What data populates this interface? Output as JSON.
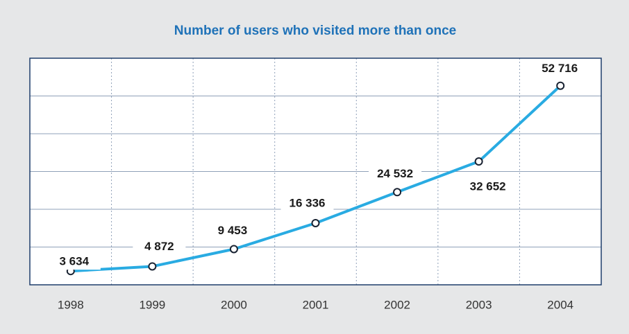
{
  "chart_data": {
    "type": "line",
    "title": "Number of users who visited more than once",
    "categories": [
      "1998",
      "1999",
      "2000",
      "2001",
      "2002",
      "2003",
      "2004"
    ],
    "series": [
      {
        "color": "#29abe2",
        "values": [
          3634,
          4872,
          9453,
          16336,
          24532,
          32652,
          52716
        ],
        "value_labels": [
          "3 634",
          "4 872",
          "9 453",
          "16 336",
          "24 532",
          "32 652",
          "52 716"
        ]
      }
    ],
    "ylim": [
      0,
      60000
    ],
    "yticks": [
      0,
      10000,
      20000,
      30000,
      40000,
      50000,
      60000
    ],
    "grid": true
  }
}
